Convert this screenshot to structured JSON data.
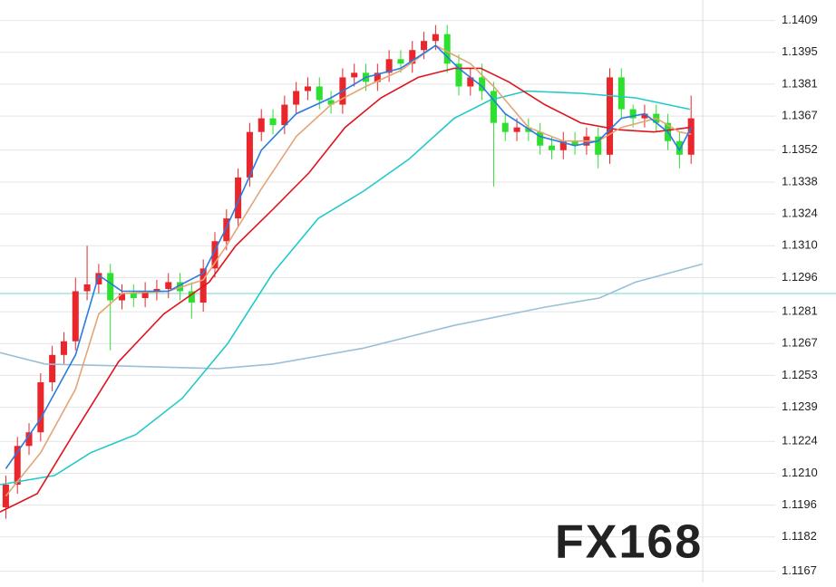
{
  "chart_data": {
    "type": "candlestick",
    "xlim": [
      -0.5,
      60
    ],
    "ylim": [
      1.1162,
      1.1418
    ],
    "yticks": [
      1.1409,
      1.1395,
      1.1381,
      1.1367,
      1.1352,
      1.1338,
      1.1324,
      {
        "value": 1.131,
        "label": "1.1310"
      },
      1.1296,
      1.1281,
      1.1267,
      1.1253,
      1.1239,
      1.1224,
      {
        "value": 1.121,
        "label": "1.1210"
      },
      1.1196,
      1.1182,
      1.1167
    ],
    "grid": true,
    "up_color": "#e8262b",
    "down_color": "#2ee02e",
    "reference_line": {
      "value": 1.1289,
      "color": "#8fe0d6"
    },
    "watermark": "FX168",
    "open": [
      1.1195,
      1.1205,
      1.1222,
      1.1228,
      1.125,
      1.1262,
      1.1268,
      1.129,
      1.1293,
      1.1298,
      1.1286,
      1.1289,
      1.1287,
      1.129,
      1.1291,
      1.1294,
      1.129,
      1.1285,
      1.13,
      1.1312,
      1.1322,
      1.134,
      1.136,
      1.1366,
      1.1363,
      1.1372,
      1.1378,
      1.138,
      1.1374,
      1.1372,
      1.1384,
      1.1386,
      1.1382,
      1.1386,
      1.1392,
      1.139,
      1.1396,
      1.14,
      1.1403,
      1.139,
      1.138,
      1.1384,
      1.1378,
      1.1364,
      1.136,
      1.1362,
      1.136,
      1.1354,
      1.1352,
      1.1356,
      1.1354,
      1.1358,
      1.135,
      1.1384,
      1.137,
      1.1366,
      1.1368,
      1.1364,
      1.1356,
      1.135
    ],
    "high": [
      1.1209,
      1.1226,
      1.1232,
      1.1254,
      1.1266,
      1.1272,
      1.1296,
      1.131,
      1.1302,
      1.1302,
      1.1293,
      1.1293,
      1.1294,
      1.1295,
      1.1298,
      1.1298,
      1.1294,
      1.1304,
      1.1316,
      1.1326,
      1.1344,
      1.1364,
      1.137,
      1.137,
      1.1376,
      1.1382,
      1.1384,
      1.1384,
      1.1378,
      1.1388,
      1.139,
      1.139,
      1.139,
      1.1396,
      1.1396,
      1.14,
      1.1404,
      1.1407,
      1.1407,
      1.1394,
      1.1388,
      1.139,
      1.1382,
      1.1368,
      1.1366,
      1.1366,
      1.1364,
      1.1358,
      1.136,
      1.136,
      1.1362,
      1.1362,
      1.1388,
      1.1388,
      1.1372,
      1.1372,
      1.1372,
      1.1368,
      1.136,
      1.1376
    ],
    "low": [
      1.119,
      1.1201,
      1.1218,
      1.1224,
      1.1246,
      1.1258,
      1.1264,
      1.1286,
      1.1289,
      1.1264,
      1.1282,
      1.1283,
      1.1283,
      1.1286,
      1.1287,
      1.1286,
      1.1278,
      1.1281,
      1.1296,
      1.1308,
      1.1318,
      1.1336,
      1.1356,
      1.1359,
      1.1359,
      1.1368,
      1.1374,
      1.137,
      1.1368,
      1.1368,
      1.138,
      1.1378,
      1.1378,
      1.1382,
      1.1386,
      1.1386,
      1.1392,
      1.1396,
      1.1386,
      1.1376,
      1.1376,
      1.1374,
      1.1336,
      1.1356,
      1.1356,
      1.1356,
      1.135,
      1.1348,
      1.1348,
      1.135,
      1.135,
      1.1344,
      1.1346,
      1.1366,
      1.1362,
      1.1362,
      1.136,
      1.1352,
      1.1344,
      1.1346
    ],
    "close": [
      1.1205,
      1.1222,
      1.1228,
      1.125,
      1.1262,
      1.1268,
      1.129,
      1.1293,
      1.1298,
      1.1286,
      1.1289,
      1.1287,
      1.129,
      1.1291,
      1.1294,
      1.129,
      1.1285,
      1.13,
      1.1312,
      1.1322,
      1.134,
      1.136,
      1.1366,
      1.1363,
      1.1372,
      1.1378,
      1.138,
      1.1374,
      1.1372,
      1.1384,
      1.1386,
      1.1382,
      1.1386,
      1.1392,
      1.139,
      1.1396,
      1.14,
      1.1403,
      1.139,
      1.138,
      1.1384,
      1.1378,
      1.1364,
      1.136,
      1.1362,
      1.136,
      1.1354,
      1.1352,
      1.1356,
      1.1354,
      1.1358,
      1.135,
      1.1384,
      1.137,
      1.1366,
      1.1368,
      1.1364,
      1.1356,
      1.135,
      1.1366
    ],
    "lines": [
      {
        "color": "#9bbfd6",
        "x": [
          -0.5,
          3.4,
          11.2,
          18.3,
          23,
          30.8,
          38.6,
          46.4,
          51.1,
          54.2,
          60
        ],
        "values": [
          1.1263,
          1.1258,
          1.1257,
          1.1256,
          1.1258,
          1.1265,
          1.1275,
          1.1283,
          1.1287,
          1.1294,
          1.1302
        ]
      },
      {
        "color": "#22c9c9",
        "x": [
          -0.5,
          4.2,
          7.3,
          11.2,
          15.2,
          19.1,
          23,
          26.9,
          30.8,
          34.7,
          38.6,
          41.7,
          44.8,
          49.5,
          54.2,
          58.9
        ],
        "values": [
          1.1205,
          1.1209,
          1.1219,
          1.1227,
          1.1243,
          1.1267,
          1.1298,
          1.1322,
          1.1334,
          1.1348,
          1.1366,
          1.1374,
          1.1378,
          1.1377,
          1.1375,
          1.137
        ]
      },
      {
        "color": "#e0141e",
        "x": [
          -0.5,
          2.7,
          5.8,
          9.7,
          13.6,
          17.5,
          19.8,
          23,
          26.1,
          29.2,
          32.3,
          35.5,
          38.6,
          40.9,
          43.3,
          46.4,
          49.5,
          52.7,
          55.8,
          58.9
        ],
        "values": [
          1.1193,
          1.1201,
          1.1227,
          1.1259,
          1.128,
          1.1294,
          1.131,
          1.1326,
          1.1342,
          1.1362,
          1.1375,
          1.1384,
          1.1388,
          1.1388,
          1.1382,
          1.1372,
          1.1364,
          1.1361,
          1.136,
          1.1362
        ]
      },
      {
        "color": "#e3a577",
        "x": [
          0,
          3,
          6,
          8,
          10,
          14,
          17,
          19,
          22,
          25,
          28,
          31,
          34,
          37,
          40,
          42,
          45,
          48,
          51,
          53,
          56,
          58,
          59
        ],
        "values": [
          1.12,
          1.1219,
          1.1247,
          1.128,
          1.1289,
          1.129,
          1.1295,
          1.131,
          1.1335,
          1.1358,
          1.1372,
          1.138,
          1.1387,
          1.1398,
          1.139,
          1.138,
          1.1362,
          1.1356,
          1.1356,
          1.1362,
          1.1366,
          1.136,
          1.1359
        ]
      },
      {
        "color": "#2a7be0",
        "x": [
          0,
          3,
          6,
          8,
          10,
          14,
          17,
          19,
          22,
          25,
          28,
          31,
          34,
          37,
          39,
          41,
          43,
          46,
          49,
          51,
          53,
          55,
          57,
          58,
          59
        ],
        "values": [
          1.1212,
          1.1234,
          1.1262,
          1.1297,
          1.129,
          1.129,
          1.1298,
          1.1318,
          1.1352,
          1.1368,
          1.1375,
          1.1384,
          1.1388,
          1.1398,
          1.1388,
          1.138,
          1.1368,
          1.1358,
          1.1354,
          1.1356,
          1.1366,
          1.1368,
          1.136,
          1.1352,
          1.1362
        ]
      }
    ]
  }
}
